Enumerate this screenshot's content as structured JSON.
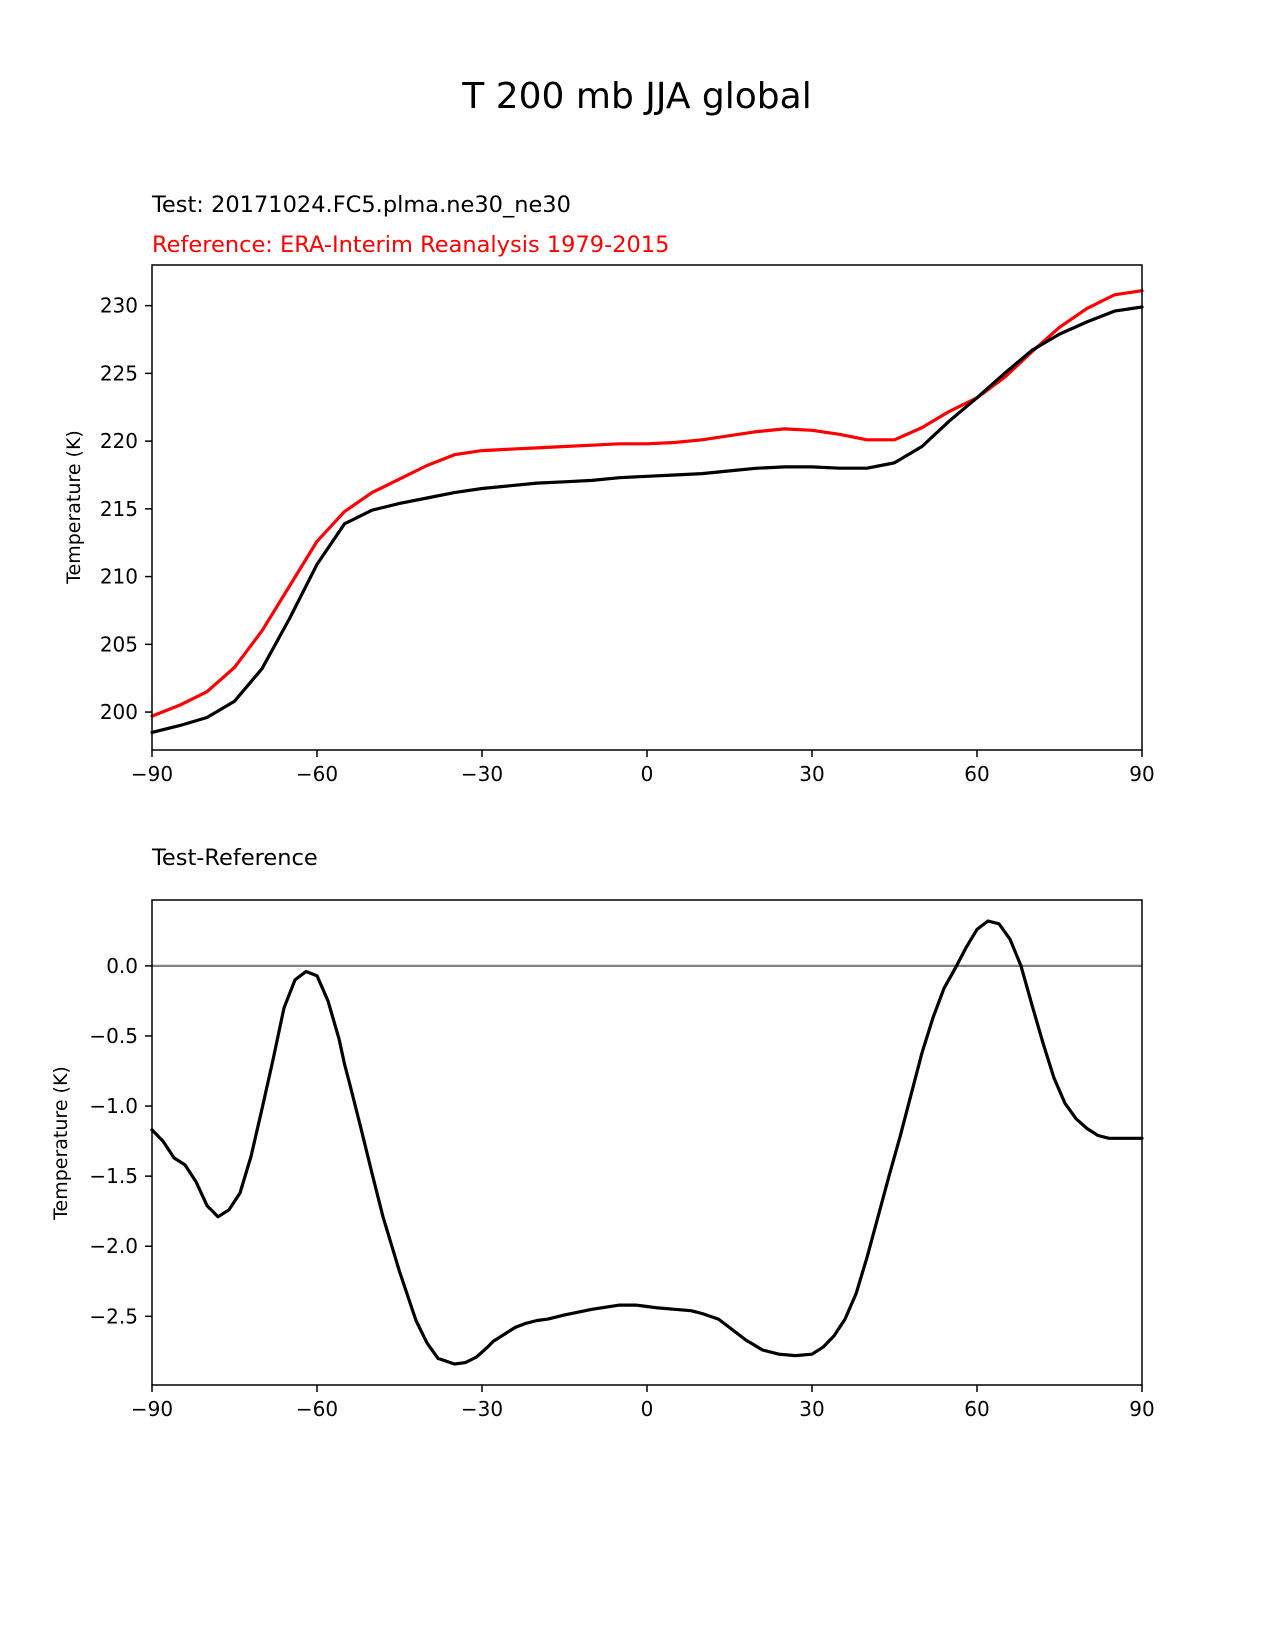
{
  "figure": {
    "title": "T 200 mb JJA global"
  },
  "colors": {
    "test": "#000000",
    "reference": "#ff0000",
    "zero_line": "#808080",
    "axis": "#000000"
  },
  "chart_data": [
    {
      "type": "line",
      "subtitle_test": "Test: 20171024.FC5.plma.ne30_ne30",
      "subtitle_reference": "Reference: ERA-Interim Reanalysis 1979-2015",
      "xlabel": "",
      "ylabel": "Temperature (K)",
      "xlim": [
        -90,
        90
      ],
      "ylim": [
        197.2,
        233.0
      ],
      "xticks": [
        -90,
        -60,
        -30,
        0,
        30,
        60,
        90
      ],
      "xtick_labels": [
        "−90",
        "−60",
        "−30",
        "0",
        "30",
        "60",
        "90"
      ],
      "yticks": [
        200,
        205,
        210,
        215,
        220,
        225,
        230
      ],
      "ytick_labels": [
        "200",
        "205",
        "210",
        "215",
        "220",
        "225",
        "230"
      ],
      "series": [
        {
          "name": "Reference",
          "color_key": "reference",
          "x": [
            -90,
            -85,
            -80,
            -75,
            -70,
            -65,
            -60,
            -55,
            -50,
            -45,
            -40,
            -35,
            -30,
            -25,
            -20,
            -15,
            -10,
            -5,
            0,
            5,
            10,
            15,
            20,
            25,
            30,
            35,
            40,
            45,
            50,
            55,
            60,
            65,
            70,
            75,
            80,
            85,
            90
          ],
          "values": [
            199.7,
            200.5,
            201.5,
            203.3,
            206.0,
            209.3,
            212.6,
            214.8,
            216.2,
            217.2,
            218.2,
            219.0,
            219.3,
            219.4,
            219.5,
            219.6,
            219.7,
            219.8,
            219.8,
            219.9,
            220.1,
            220.4,
            220.7,
            220.9,
            220.8,
            220.5,
            220.1,
            220.1,
            221.0,
            222.2,
            223.2,
            224.7,
            226.6,
            228.4,
            229.8,
            230.8,
            231.1
          ]
        },
        {
          "name": "Test",
          "color_key": "test",
          "x": [
            -90,
            -85,
            -80,
            -75,
            -70,
            -65,
            -60,
            -55,
            -50,
            -45,
            -40,
            -35,
            -30,
            -25,
            -20,
            -15,
            -10,
            -5,
            0,
            5,
            10,
            15,
            20,
            25,
            30,
            35,
            40,
            45,
            50,
            55,
            60,
            65,
            70,
            75,
            80,
            85,
            90
          ],
          "values": [
            198.5,
            199.0,
            199.6,
            200.8,
            203.2,
            206.9,
            210.9,
            213.9,
            214.9,
            215.4,
            215.8,
            216.2,
            216.5,
            216.7,
            216.9,
            217.0,
            217.1,
            217.3,
            217.4,
            217.5,
            217.6,
            217.8,
            218.0,
            218.1,
            218.1,
            218.0,
            218.0,
            218.4,
            219.6,
            221.5,
            223.2,
            225.0,
            226.7,
            227.9,
            228.8,
            229.6,
            229.9
          ]
        }
      ]
    },
    {
      "type": "line",
      "subtitle": "Test-Reference",
      "xlabel": "",
      "ylabel": "Temperature (K)",
      "xlim": [
        -90,
        90
      ],
      "ylim": [
        -2.99,
        0.47
      ],
      "xticks": [
        -90,
        -60,
        -30,
        0,
        30,
        60,
        90
      ],
      "xtick_labels": [
        "−90",
        "−60",
        "−30",
        "0",
        "30",
        "60",
        "90"
      ],
      "yticks": [
        -2.5,
        -2.0,
        -1.5,
        -1.0,
        -0.5,
        0.0
      ],
      "ytick_labels": [
        "−2.5",
        "−2.0",
        "−1.5",
        "−1.0",
        "−0.5",
        "0.0"
      ],
      "zero_line": 0.0,
      "series": [
        {
          "name": "Test-Reference",
          "color_key": "test",
          "x": [
            -90,
            -88,
            -86,
            -84,
            -82,
            -80,
            -78,
            -76,
            -74,
            -72,
            -70,
            -68,
            -66,
            -64,
            -62,
            -60,
            -58,
            -56,
            -55,
            -54,
            -52,
            -50,
            -48,
            -45,
            -42,
            -40,
            -38,
            -35,
            -33,
            -31,
            -29,
            -28,
            -26,
            -24,
            -22,
            -20,
            -18,
            -15,
            -10,
            -5,
            -2,
            0,
            2,
            5,
            8,
            10,
            13,
            15,
            18,
            21,
            24,
            27,
            30,
            32,
            34,
            36,
            38,
            40,
            42,
            44,
            46,
            48,
            50,
            52,
            54,
            56,
            58,
            60,
            62,
            64,
            66,
            68,
            70,
            72,
            74,
            76,
            78,
            80,
            82,
            84,
            86,
            88,
            90
          ],
          "values": [
            -1.17,
            -1.25,
            -1.37,
            -1.42,
            -1.54,
            -1.71,
            -1.79,
            -1.74,
            -1.62,
            -1.36,
            -1.02,
            -0.67,
            -0.3,
            -0.1,
            -0.04,
            -0.07,
            -0.25,
            -0.52,
            -0.7,
            -0.85,
            -1.16,
            -1.48,
            -1.79,
            -2.18,
            -2.53,
            -2.69,
            -2.8,
            -2.84,
            -2.83,
            -2.79,
            -2.72,
            -2.68,
            -2.63,
            -2.58,
            -2.55,
            -2.53,
            -2.52,
            -2.49,
            -2.45,
            -2.42,
            -2.42,
            -2.43,
            -2.44,
            -2.45,
            -2.46,
            -2.48,
            -2.52,
            -2.58,
            -2.67,
            -2.74,
            -2.77,
            -2.78,
            -2.77,
            -2.72,
            -2.64,
            -2.52,
            -2.34,
            -2.08,
            -1.79,
            -1.5,
            -1.22,
            -0.92,
            -0.62,
            -0.37,
            -0.16,
            -0.02,
            0.13,
            0.26,
            0.32,
            0.3,
            0.19,
            0.0,
            -0.28,
            -0.55,
            -0.8,
            -0.98,
            -1.09,
            -1.16,
            -1.21,
            -1.23,
            -1.23,
            -1.23,
            -1.23
          ]
        }
      ]
    }
  ]
}
